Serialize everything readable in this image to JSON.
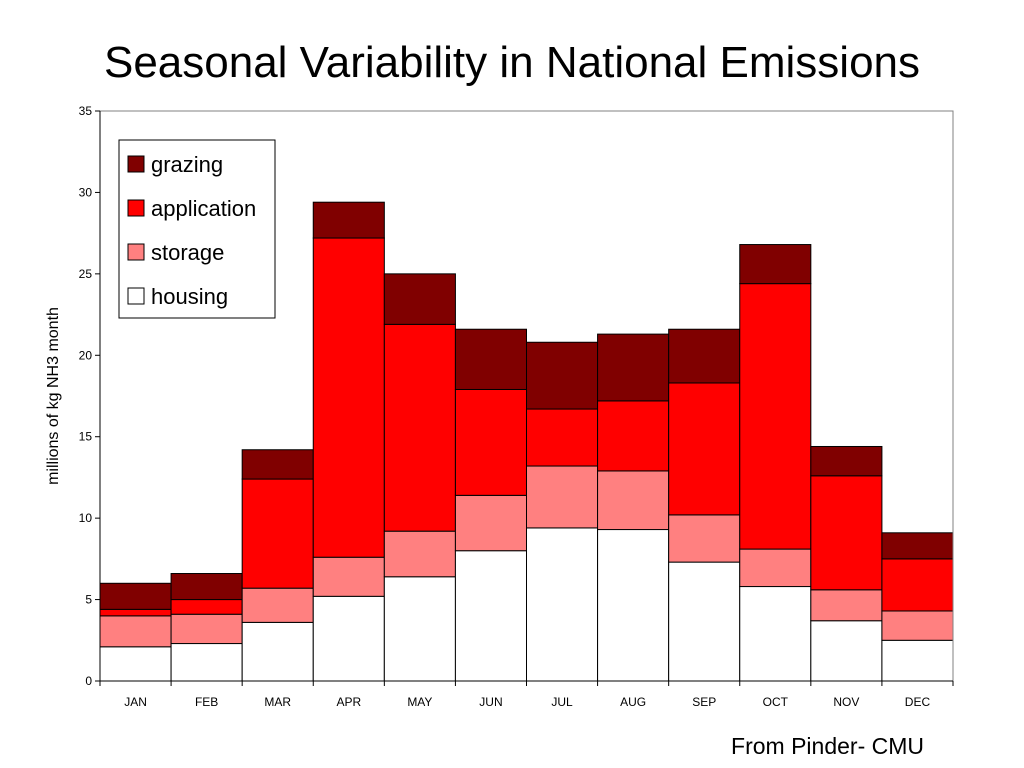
{
  "slide": {
    "title": "Seasonal Variability in National Emissions",
    "credit": "From Pinder- CMU"
  },
  "chart_data": {
    "type": "bar",
    "stacked": true,
    "categories": [
      "JAN",
      "FEB",
      "MAR",
      "APR",
      "MAY",
      "JUN",
      "JUL",
      "AUG",
      "SEP",
      "OCT",
      "NOV",
      "DEC"
    ],
    "series": [
      {
        "name": "housing",
        "color": "#FFFFFF",
        "values": [
          2.1,
          2.3,
          3.6,
          5.2,
          6.4,
          8.0,
          9.4,
          9.3,
          7.3,
          5.8,
          3.7,
          2.5
        ]
      },
      {
        "name": "storage",
        "color": "#FF8080",
        "values": [
          1.9,
          1.8,
          2.1,
          2.4,
          2.8,
          3.4,
          3.8,
          3.6,
          2.9,
          2.3,
          1.9,
          1.8
        ]
      },
      {
        "name": "application",
        "color": "#FF0000",
        "values": [
          0.4,
          0.9,
          6.7,
          19.6,
          12.7,
          6.5,
          3.5,
          4.3,
          8.1,
          16.3,
          7.0,
          3.2
        ]
      },
      {
        "name": "grazing",
        "color": "#800000",
        "values": [
          1.6,
          1.6,
          1.8,
          2.2,
          3.1,
          3.7,
          4.1,
          4.1,
          3.3,
          2.4,
          1.8,
          1.6
        ]
      }
    ],
    "legend_order": [
      "grazing",
      "application",
      "storage",
      "housing"
    ],
    "ylabel": "millions of kg NH3 month",
    "ylim": [
      0,
      35
    ],
    "yticks": [
      0,
      5,
      10,
      15,
      20,
      25,
      30,
      35
    ],
    "legend_position": "top-left",
    "grid": false
  }
}
